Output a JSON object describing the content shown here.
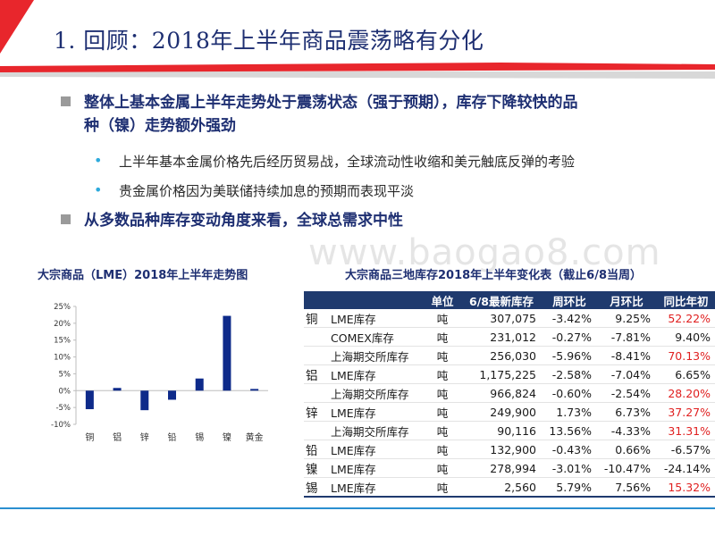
{
  "header": {
    "title": "1. 回顾：2018年上半年商品震荡略有分化",
    "colors": {
      "accent_red": "#e8262c",
      "navy": "#1e2f72"
    }
  },
  "bullets": {
    "main1_line1": "整体上基本金属上半年走势处于震荡状态（强于预期），库存下降较快的品",
    "main1_line2": "种（镍）走势额外强劲",
    "sub1": "上半年基本金属价格先后经历贸易战，全球流动性收缩和美元触底反弹的考验",
    "sub2": "贵金属价格因为美联储持续加息的预期而表现平淡",
    "main2": "从多数品种库存变动角度来看，全球总需求中性"
  },
  "watermark": "www.baogao8.com",
  "chart_title": "大宗商品（LME）2018年上半年走势图",
  "chart_data": {
    "type": "bar",
    "title": "大宗商品（LME）2018年上半年走势图",
    "categories": [
      "铜",
      "铝",
      "锌",
      "铅",
      "锡",
      "镍",
      "黄金"
    ],
    "values": [
      -5.5,
      0.8,
      -5.8,
      -2.7,
      3.6,
      22.2,
      0.5
    ],
    "ylim": [
      -10,
      25
    ],
    "yticks": [
      "-10%",
      "-5%",
      "0%",
      "5%",
      "10%",
      "15%",
      "20%",
      "25%"
    ],
    "ytick_values": [
      -10,
      -5,
      0,
      5,
      10,
      15,
      20,
      25
    ],
    "bar_color": "#0e2a8a"
  },
  "table_title": "大宗商品三地库存2018年上半年变化表（截止6/8当周）",
  "table": {
    "headers": [
      "",
      "",
      "单位",
      "6/8最新库存",
      "周环比",
      "月环比",
      "同比年初"
    ],
    "rows": [
      {
        "metal": "铜",
        "item": "LME库存",
        "unit": "吨",
        "stock": "307,075",
        "wow": "-3.42%",
        "mom": "9.25%",
        "ytd": "52.22%",
        "ytd_red": true
      },
      {
        "metal": "",
        "item": "COMEX库存",
        "unit": "吨",
        "stock": "231,012",
        "wow": "-0.27%",
        "mom": "-7.81%",
        "ytd": "9.40%",
        "ytd_red": false
      },
      {
        "metal": "",
        "item": "上海期交所库存",
        "unit": "吨",
        "stock": "256,030",
        "wow": "-5.96%",
        "mom": "-8.41%",
        "ytd": "70.13%",
        "ytd_red": true
      },
      {
        "metal": "铝",
        "item": "LME库存",
        "unit": "吨",
        "stock": "1,175,225",
        "wow": "-2.58%",
        "mom": "-7.04%",
        "ytd": "6.65%",
        "ytd_red": false
      },
      {
        "metal": "",
        "item": "上海期交所库存",
        "unit": "吨",
        "stock": "966,824",
        "wow": "-0.60%",
        "mom": "-2.54%",
        "ytd": "28.20%",
        "ytd_red": true
      },
      {
        "metal": "锌",
        "item": "LME库存",
        "unit": "吨",
        "stock": "249,900",
        "wow": "1.73%",
        "mom": "6.73%",
        "ytd": "37.27%",
        "ytd_red": true
      },
      {
        "metal": "",
        "item": "上海期交所库存",
        "unit": "吨",
        "stock": "90,116",
        "wow": "13.56%",
        "mom": "-4.33%",
        "ytd": "31.31%",
        "ytd_red": true
      },
      {
        "metal": "铅",
        "item": "LME库存",
        "unit": "吨",
        "stock": "132,900",
        "wow": "-0.43%",
        "mom": "0.66%",
        "ytd": "-6.57%",
        "ytd_red": false
      },
      {
        "metal": "镍",
        "item": "LME库存",
        "unit": "吨",
        "stock": "278,994",
        "wow": "-3.01%",
        "mom": "-10.47%",
        "ytd": "-24.14%",
        "ytd_red": false
      },
      {
        "metal": "锡",
        "item": "LME库存",
        "unit": "吨",
        "stock": "2,560",
        "wow": "5.79%",
        "mom": "7.56%",
        "ytd": "15.32%",
        "ytd_red": true
      }
    ]
  }
}
